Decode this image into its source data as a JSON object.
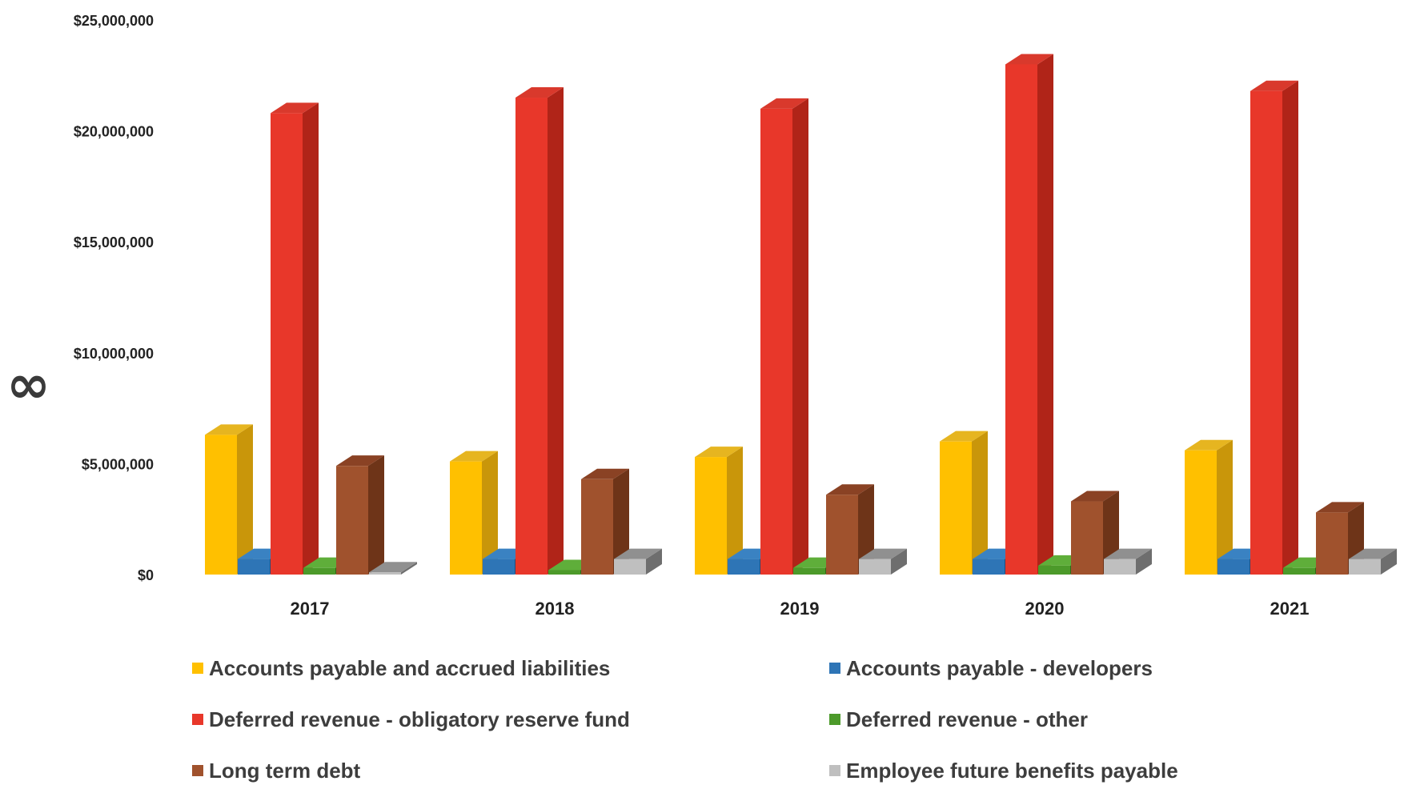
{
  "side_mark": "∞",
  "chart_data": {
    "type": "bar",
    "style": "3d-clustered-column",
    "title": "",
    "xlabel": "",
    "ylabel": "",
    "ylim": [
      0,
      25000000
    ],
    "y_ticks": [
      0,
      5000000,
      10000000,
      15000000,
      20000000,
      25000000
    ],
    "y_tick_labels": [
      "$0",
      "$5,000,000",
      "$10,000,000",
      "$15,000,000",
      "$20,000,000",
      "$25,000,000"
    ],
    "categories": [
      "2017",
      "2018",
      "2019",
      "2020",
      "2021"
    ],
    "grid": false,
    "legend_position": "bottom",
    "series": [
      {
        "name": "Accounts payable and accrued liabilities",
        "color": "#FFC000",
        "side_color": "#C9960A",
        "top_color": "#E6B520",
        "values": [
          6300000,
          5100000,
          5300000,
          6000000,
          5600000
        ]
      },
      {
        "name": "Accounts payable - developers",
        "color": "#2E75B6",
        "side_color": "#1E4F80",
        "top_color": "#3A82C2",
        "values": [
          700000,
          700000,
          700000,
          700000,
          700000
        ]
      },
      {
        "name": "Deferred revenue - obligatory reserve fund",
        "color": "#E8372A",
        "side_color": "#B02418",
        "top_color": "#D9392C",
        "values": [
          20800000,
          21500000,
          21000000,
          23000000,
          21800000
        ]
      },
      {
        "name": "Deferred revenue - other",
        "color": "#4C9A2A",
        "side_color": "#2E6A18",
        "top_color": "#5FAE3A",
        "values": [
          300000,
          200000,
          300000,
          400000,
          300000
        ]
      },
      {
        "name": "Long term debt",
        "color": "#A0522D",
        "side_color": "#6E3418",
        "top_color": "#8A4224",
        "values": [
          4900000,
          4300000,
          3600000,
          3300000,
          2800000
        ]
      },
      {
        "name": "Employee future benefits payable",
        "color": "#BFBFBF",
        "side_color": "#6E6E6E",
        "top_color": "#909090",
        "values": [
          100000,
          700000,
          700000,
          700000,
          700000
        ]
      }
    ]
  }
}
